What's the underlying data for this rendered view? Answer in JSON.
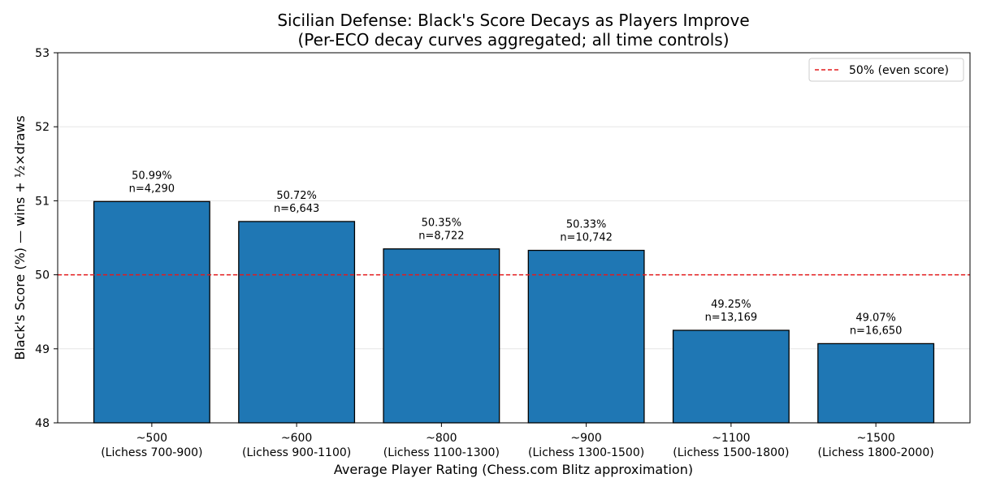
{
  "chart_data": {
    "type": "bar",
    "title": "Sicilian Defense: Black's Score Decays as Players Improve",
    "subtitle": "(Per-ECO decay curves aggregated; all time controls)",
    "xlabel": "Average Player Rating  (Chess.com Blitz approximation)",
    "ylabel": "Black's Score (%) — wins + ½×draws",
    "ylim": [
      48,
      53
    ],
    "yticks": [
      48,
      49,
      50,
      51,
      52,
      53
    ],
    "grid": "horizontal",
    "categories": [
      {
        "primary": "~500",
        "secondary": "(Lichess 700-900)"
      },
      {
        "primary": "~600",
        "secondary": "(Lichess 900-1100)"
      },
      {
        "primary": "~800",
        "secondary": "(Lichess 1100-1300)"
      },
      {
        "primary": "~900",
        "secondary": "(Lichess 1300-1500)"
      },
      {
        "primary": "~1100",
        "secondary": "(Lichess 1500-1800)"
      },
      {
        "primary": "~1500",
        "secondary": "(Lichess 1800-2000)"
      }
    ],
    "values": [
      50.99,
      50.72,
      50.35,
      50.33,
      49.25,
      49.07
    ],
    "value_labels": [
      "50.99%",
      "50.72%",
      "50.35%",
      "50.33%",
      "49.25%",
      "49.07%"
    ],
    "sample_labels": [
      "n=4,290",
      "n=6,643",
      "n=8,722",
      "n=10,742",
      "n=13,169",
      "n=16,650"
    ],
    "reference_line": {
      "value": 50,
      "label": "50% (even score)",
      "color": "#e41a1c",
      "style": "dashed"
    },
    "bar_color": "#1f77b4",
    "legend_position": "top-right"
  }
}
